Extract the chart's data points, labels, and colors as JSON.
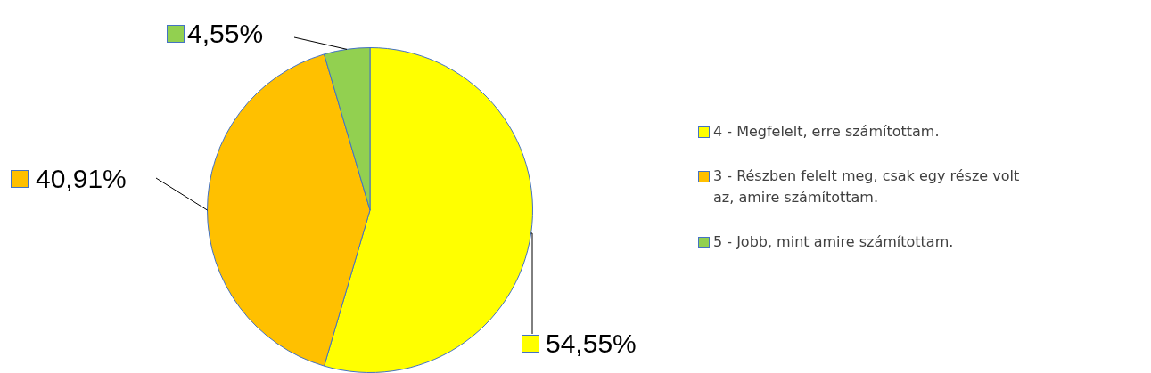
{
  "chart_data": {
    "type": "pie",
    "categories": [
      "4 - Megfelelt, erre számítottam.",
      "3 - Részben felelt meg, csak egy része volt az, amire számítottam.",
      "5 - Jobb, mint amire számítottam."
    ],
    "values": [
      54.55,
      40.91,
      4.55
    ],
    "colors": [
      "#ffff00",
      "#ffc000",
      "#92d050"
    ],
    "value_labels": [
      "54,55%",
      "40,91%",
      "4,55%"
    ],
    "legend": "right"
  }
}
